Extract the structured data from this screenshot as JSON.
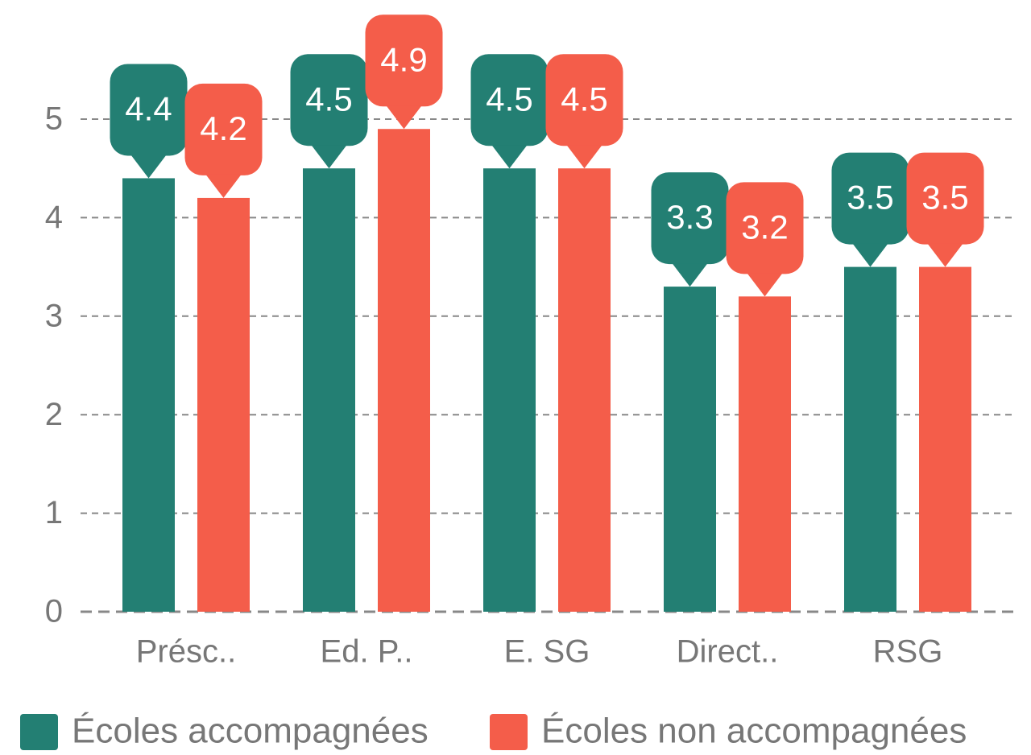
{
  "chart_data": {
    "type": "bar",
    "categories": [
      "Présc..",
      "Ed. P..",
      "E. SG",
      "Direct..",
      "RSG"
    ],
    "series": [
      {
        "name": "Écoles accompagnées",
        "color": "#237f73",
        "values": [
          4.4,
          4.5,
          4.5,
          3.3,
          3.5
        ]
      },
      {
        "name": "Écoles non accompagnées",
        "color": "#f45d4a",
        "values": [
          4.2,
          4.9,
          4.5,
          3.2,
          3.5
        ]
      }
    ],
    "ylim": [
      0,
      5
    ],
    "yticks": [
      0,
      1,
      2,
      3,
      4,
      5
    ],
    "grid": true,
    "legend": "bottom"
  }
}
